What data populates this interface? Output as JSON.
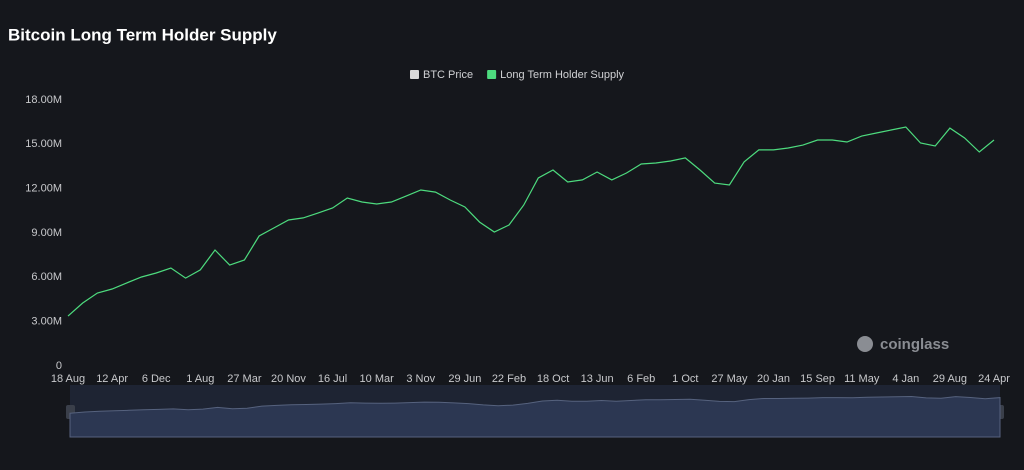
{
  "chart_data": {
    "type": "line",
    "title": "Bitcoin Long Term Holder Supply",
    "watermark": "coinglass",
    "categories": [
      "18 Aug",
      null,
      null,
      "12 Apr",
      null,
      null,
      "6 Dec",
      null,
      null,
      "1 Aug",
      null,
      null,
      "27 Mar",
      null,
      null,
      "20 Nov",
      null,
      null,
      "16 Jul",
      null,
      null,
      "10 Mar",
      null,
      null,
      "3 Nov",
      null,
      null,
      "29 Jun",
      null,
      null,
      "22 Feb",
      null,
      null,
      "18 Oct",
      null,
      null,
      "13 Jun",
      null,
      null,
      "6 Feb",
      null,
      null,
      "1 Oct",
      null,
      null,
      "27 May",
      null,
      null,
      "20 Jan",
      null,
      null,
      "15 Sep",
      null,
      null,
      "11 May",
      null,
      null,
      "4 Jan",
      null,
      null,
      "29 Aug",
      null,
      null,
      "24 Apr"
    ],
    "series": [
      {
        "name": "BTC Price",
        "color": "#d9d9d9",
        "values": [
          null,
          null,
          null,
          null,
          null,
          null,
          null,
          null,
          null,
          null,
          null,
          null,
          null,
          null,
          null,
          null,
          null,
          null,
          null,
          null,
          null,
          null,
          null,
          null,
          null,
          null,
          null,
          null,
          null,
          null,
          null,
          null,
          null,
          null,
          null,
          null,
          null,
          null,
          null,
          null,
          null,
          null,
          null,
          null,
          null,
          null,
          null,
          null,
          null,
          null,
          null,
          null,
          null,
          null,
          null,
          null,
          null,
          null,
          null,
          null,
          null,
          null,
          null,
          null
        ]
      },
      {
        "name": "Long Term Holder Supply",
        "color": "#4ddb7e",
        "values": [
          3380000,
          4260000,
          4940000,
          5210000,
          5620000,
          6020000,
          6290000,
          6630000,
          5950000,
          6500000,
          7850000,
          6830000,
          7170000,
          8800000,
          9340000,
          9880000,
          10020000,
          10350000,
          10690000,
          11370000,
          11100000,
          10960000,
          11100000,
          11500000,
          11910000,
          11770000,
          11230000,
          10760000,
          9740000,
          9070000,
          9540000,
          10890000,
          12720000,
          13260000,
          12450000,
          12590000,
          13130000,
          12590000,
          13060000,
          13670000,
          13740000,
          13870000,
          14080000,
          13260000,
          12380000,
          12250000,
          13810000,
          14620000,
          14620000,
          14750000,
          14950000,
          15290000,
          15290000,
          15160000,
          15560000,
          15770000,
          15970000,
          16170000,
          15090000,
          14890000,
          16100000,
          15430000,
          14480000,
          15290000
        ]
      }
    ],
    "ylim": [
      0,
      18000000
    ],
    "yticks": [
      0,
      {
        "value": 3000000,
        "label": "3.00M"
      },
      {
        "value": 6000000,
        "label": "6.00M"
      },
      {
        "value": 9000000,
        "label": "9.00M"
      },
      {
        "value": 12000000,
        "label": "12.00M"
      },
      {
        "value": 15000000,
        "label": "15.00M"
      },
      {
        "value": 18000000,
        "label": "18.00M"
      }
    ],
    "grid": false
  }
}
